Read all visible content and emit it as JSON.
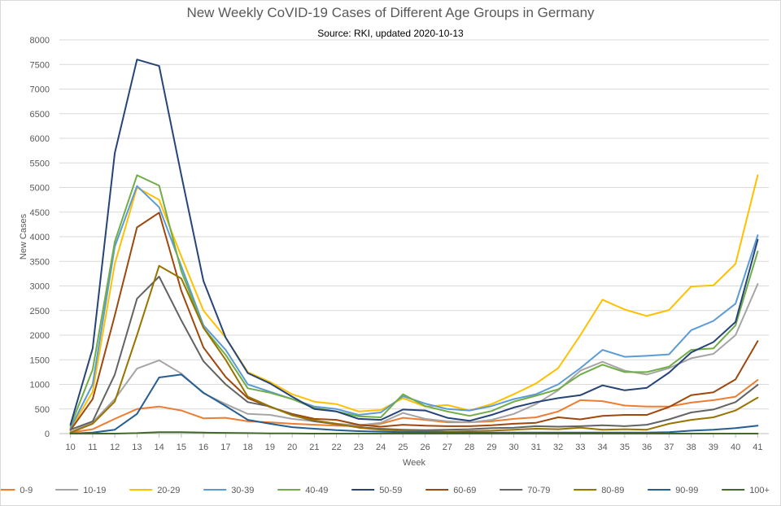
{
  "chart_data": {
    "type": "line",
    "title": "New Weekly CoVID-19 Cases of Different Age Groups in Germany",
    "subtitle": "Source: RKI, updated 2020-10-13",
    "xlabel": "Week",
    "ylabel": "New Cases",
    "ylim": [
      0,
      8000
    ],
    "yticks": [
      0,
      500,
      1000,
      1500,
      2000,
      2500,
      3000,
      3500,
      4000,
      4500,
      5000,
      5500,
      6000,
      6500,
      7000,
      7500,
      8000
    ],
    "x": [
      10,
      11,
      12,
      13,
      14,
      15,
      16,
      17,
      18,
      19,
      20,
      21,
      22,
      23,
      24,
      25,
      26,
      27,
      28,
      29,
      30,
      31,
      32,
      33,
      34,
      35,
      36,
      37,
      38,
      39,
      40,
      41
    ],
    "grid": true,
    "legend_position": "bottom",
    "series": [
      {
        "name": "0-9",
        "color": "#ED7D31",
        "values": [
          20,
          90,
          300,
          500,
          550,
          470,
          310,
          320,
          250,
          230,
          200,
          180,
          160,
          150,
          200,
          320,
          280,
          230,
          230,
          250,
          300,
          330,
          450,
          680,
          660,
          570,
          550,
          550,
          630,
          680,
          750,
          1090
        ]
      },
      {
        "name": "10-19",
        "color": "#A5A5A5",
        "values": [
          30,
          230,
          700,
          1320,
          1490,
          1220,
          820,
          600,
          400,
          380,
          300,
          250,
          200,
          170,
          220,
          420,
          300,
          250,
          230,
          280,
          400,
          600,
          880,
          1280,
          1460,
          1280,
          1200,
          1330,
          1530,
          1620,
          2000,
          3040
        ]
      },
      {
        "name": "20-29",
        "color": "#FFC000",
        "values": [
          90,
          850,
          3450,
          5000,
          4750,
          3600,
          2500,
          1950,
          1250,
          1050,
          800,
          650,
          600,
          450,
          480,
          720,
          550,
          580,
          470,
          600,
          800,
          1020,
          1330,
          2000,
          2720,
          2520,
          2390,
          2510,
          2990,
          3010,
          3450,
          5250
        ]
      },
      {
        "name": "30-39",
        "color": "#5B9BD5",
        "values": [
          110,
          1000,
          3800,
          5030,
          4600,
          3400,
          2200,
          1700,
          1000,
          850,
          700,
          550,
          500,
          380,
          430,
          760,
          610,
          500,
          470,
          560,
          700,
          800,
          1000,
          1330,
          1700,
          1560,
          1580,
          1610,
          2100,
          2290,
          2640,
          4030
        ]
      },
      {
        "name": "40-49",
        "color": "#70AD47",
        "values": [
          150,
          1300,
          3900,
          5250,
          5040,
          3300,
          2150,
          1600,
          920,
          830,
          700,
          520,
          450,
          350,
          330,
          800,
          560,
          450,
          360,
          460,
          650,
          770,
          900,
          1200,
          1400,
          1250,
          1250,
          1360,
          1700,
          1730,
          2200,
          3700
        ]
      },
      {
        "name": "50-59",
        "color": "#264478",
        "values": [
          180,
          1730,
          5700,
          7600,
          7470,
          5250,
          3100,
          1950,
          1230,
          1020,
          750,
          500,
          450,
          300,
          280,
          490,
          470,
          320,
          260,
          380,
          530,
          640,
          720,
          780,
          980,
          880,
          930,
          1240,
          1650,
          1860,
          2270,
          3940
        ]
      },
      {
        "name": "60-69",
        "color": "#9E480E",
        "values": [
          70,
          700,
          2400,
          4190,
          4490,
          2900,
          1750,
          1150,
          720,
          540,
          400,
          300,
          280,
          180,
          140,
          180,
          160,
          150,
          150,
          170,
          200,
          220,
          330,
          290,
          360,
          380,
          380,
          540,
          780,
          840,
          1100,
          1880
        ]
      },
      {
        "name": "70-79",
        "color": "#636363",
        "values": [
          80,
          250,
          1200,
          2740,
          3190,
          2300,
          1470,
          1000,
          640,
          550,
          380,
          250,
          190,
          130,
          100,
          80,
          70,
          80,
          90,
          110,
          120,
          150,
          140,
          150,
          170,
          150,
          180,
          290,
          430,
          490,
          640,
          990
        ]
      },
      {
        "name": "80-89",
        "color": "#997300",
        "values": [
          20,
          200,
          650,
          2000,
          3410,
          3150,
          2150,
          1500,
          750,
          550,
          370,
          270,
          200,
          120,
          80,
          60,
          50,
          40,
          50,
          60,
          80,
          100,
          90,
          120,
          80,
          90,
          80,
          200,
          280,
          330,
          470,
          730
        ]
      },
      {
        "name": "90-99",
        "color": "#255E91",
        "values": [
          0,
          20,
          80,
          400,
          1140,
          1200,
          830,
          560,
          280,
          200,
          130,
          100,
          70,
          50,
          40,
          30,
          30,
          20,
          20,
          20,
          20,
          20,
          20,
          20,
          20,
          20,
          20,
          30,
          60,
          80,
          110,
          160
        ]
      },
      {
        "name": "100+",
        "color": "#43682B",
        "values": [
          0,
          0,
          0,
          10,
          30,
          30,
          20,
          15,
          10,
          5,
          5,
          0,
          0,
          0,
          0,
          0,
          0,
          0,
          0,
          0,
          0,
          0,
          0,
          0,
          0,
          0,
          0,
          0,
          0,
          0,
          0,
          0
        ]
      }
    ]
  }
}
